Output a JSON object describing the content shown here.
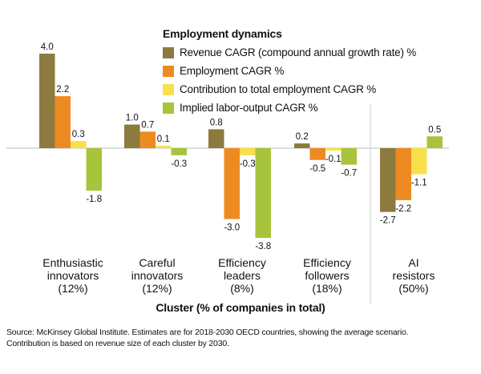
{
  "chart_data": {
    "type": "bar",
    "legend_title": "Employment dynamics",
    "categories": [
      [
        "Enthusiastic",
        "innovators",
        "(12%)"
      ],
      [
        "Careful",
        "innovators",
        "(12%)"
      ],
      [
        "Efficiency",
        "leaders",
        "(8%)"
      ],
      [
        "Efficiency",
        "followers",
        "(18%)"
      ],
      [
        "AI",
        "resistors",
        "(50%)"
      ]
    ],
    "series": [
      {
        "name": "Revenue CAGR (compound annual growth rate) %",
        "color": "#8C7A3E",
        "values": [
          4.0,
          1.0,
          0.8,
          0.2,
          -2.7
        ],
        "labels": [
          "4.0",
          "1.0",
          "0.8",
          "0.2",
          "-2.7"
        ]
      },
      {
        "name": "Employment CAGR %",
        "color": "#EE8A22",
        "values": [
          2.2,
          0.7,
          -3.0,
          -0.5,
          -2.2
        ],
        "labels": [
          "2.2",
          "0.7",
          "-3.0",
          "-0.5",
          "-2.2"
        ]
      },
      {
        "name": "Contribution to total employment CAGR %",
        "color": "#F8E04A",
        "values": [
          0.3,
          0.1,
          -0.3,
          -0.1,
          -1.1
        ],
        "labels": [
          "0.3",
          "0.1",
          "-0.3",
          "-0.1",
          "-1.1"
        ]
      },
      {
        "name": "Implied labor-output CAGR %",
        "color": "#A8C43C",
        "values": [
          -1.8,
          -0.3,
          -3.8,
          -0.7,
          0.5
        ],
        "labels": [
          "-1.8",
          "-0.3",
          "-3.8",
          "-0.7",
          "0.5"
        ]
      }
    ],
    "xlabel": "Cluster (% of companies in total)",
    "ylabel": "",
    "ylim": [
      -3.8,
      4.0
    ],
    "grid": false,
    "legend_position": "top"
  },
  "source": {
    "line1": "Source: McKinsey Global Institute. Estimates are for 2018-2030 OECD countries, showing the average scenario.",
    "line2": "Contribution is based on revenue size of each cluster by 2030."
  }
}
